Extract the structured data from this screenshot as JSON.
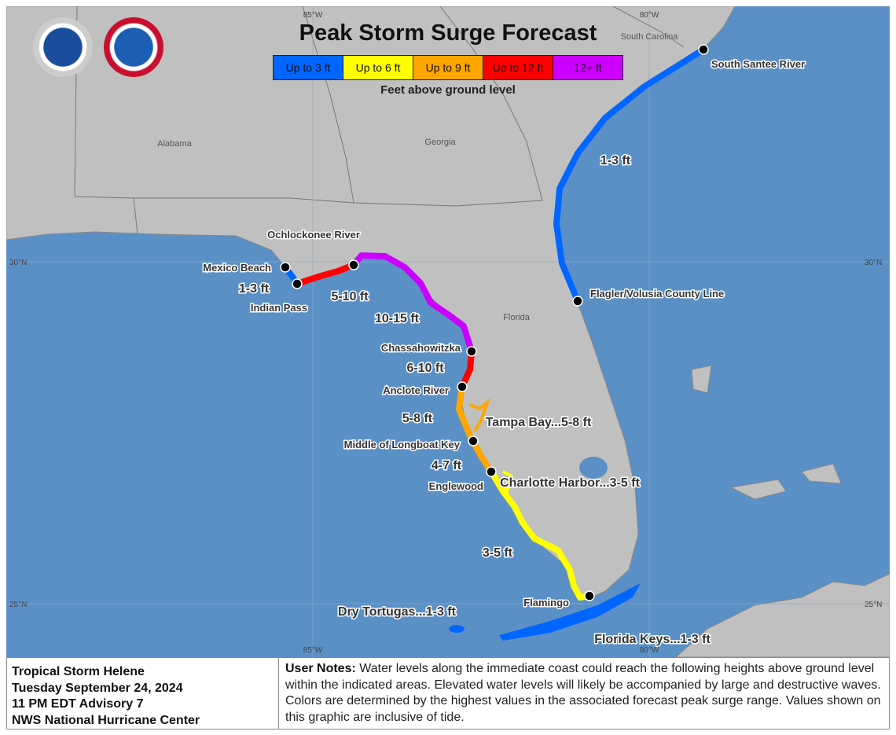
{
  "title": "Peak Storm Surge Forecast",
  "legend": {
    "items": [
      {
        "label": "Up to 3 ft",
        "color": "#0066ff"
      },
      {
        "label": "Up to 6 ft",
        "color": "#ffff00"
      },
      {
        "label": "Up to 9 ft",
        "color": "#ffa500"
      },
      {
        "label": "Up to 12 ft",
        "color": "#ff0000"
      },
      {
        "label": "12+ ft",
        "color": "#cc00ff"
      }
    ],
    "subtitle": "Feet above ground level"
  },
  "logos": {
    "noaa": "NOAA",
    "nws": "NATIONAL WEATHER SERVICE"
  },
  "grid": {
    "lon1": "85°W",
    "lon2": "80°W",
    "lat1": "30°N",
    "lat2": "25°N"
  },
  "states": {
    "alabama": "Alabama",
    "georgia": "Georgia",
    "south_carolina": "South Carolina",
    "florida": "Florida"
  },
  "points": {
    "mexico_beach": "Mexico Beach",
    "indian_pass": "Indian Pass",
    "ochlockonee": "Ochlockonee River",
    "chassahowitzka": "Chassahowitzka",
    "anclote": "Anclote River",
    "longboat": "Middle of Longboat Key",
    "englewood": "Englewood",
    "flamingo": "Flamingo",
    "flagler": "Flagler/Volusia County Line",
    "santee": "South Santee River"
  },
  "ranges": {
    "r1": "1-3 ft",
    "r2": "5-10 ft",
    "r3": "10-15 ft",
    "r4": "6-10 ft",
    "r5": "5-8 ft",
    "r6": "4-7 ft",
    "r7": "3-5 ft",
    "r8": "1-3 ft",
    "tampa": "Tampa Bay...5-8 ft",
    "charlotte": "Charlotte Harbor...3-5 ft",
    "tortugas": "Dry Tortugas...1-3 ft",
    "keys": "Florida Keys...1-3 ft"
  },
  "footer": {
    "storm": "Tropical Storm Helene",
    "date": "Tuesday September 24, 2024",
    "advisory": "11 PM EDT Advisory 7",
    "center": "NWS National Hurricane Center",
    "notes_label": "User Notes:",
    "notes": "Water levels along the immediate coast could reach the following heights above ground level within the indicated areas. Elevated water levels will likely be accompanied by large and destructive waves. Colors are determined by the highest values in the associated forecast peak surge range. Values shown on this graphic are inclusive of tide."
  }
}
